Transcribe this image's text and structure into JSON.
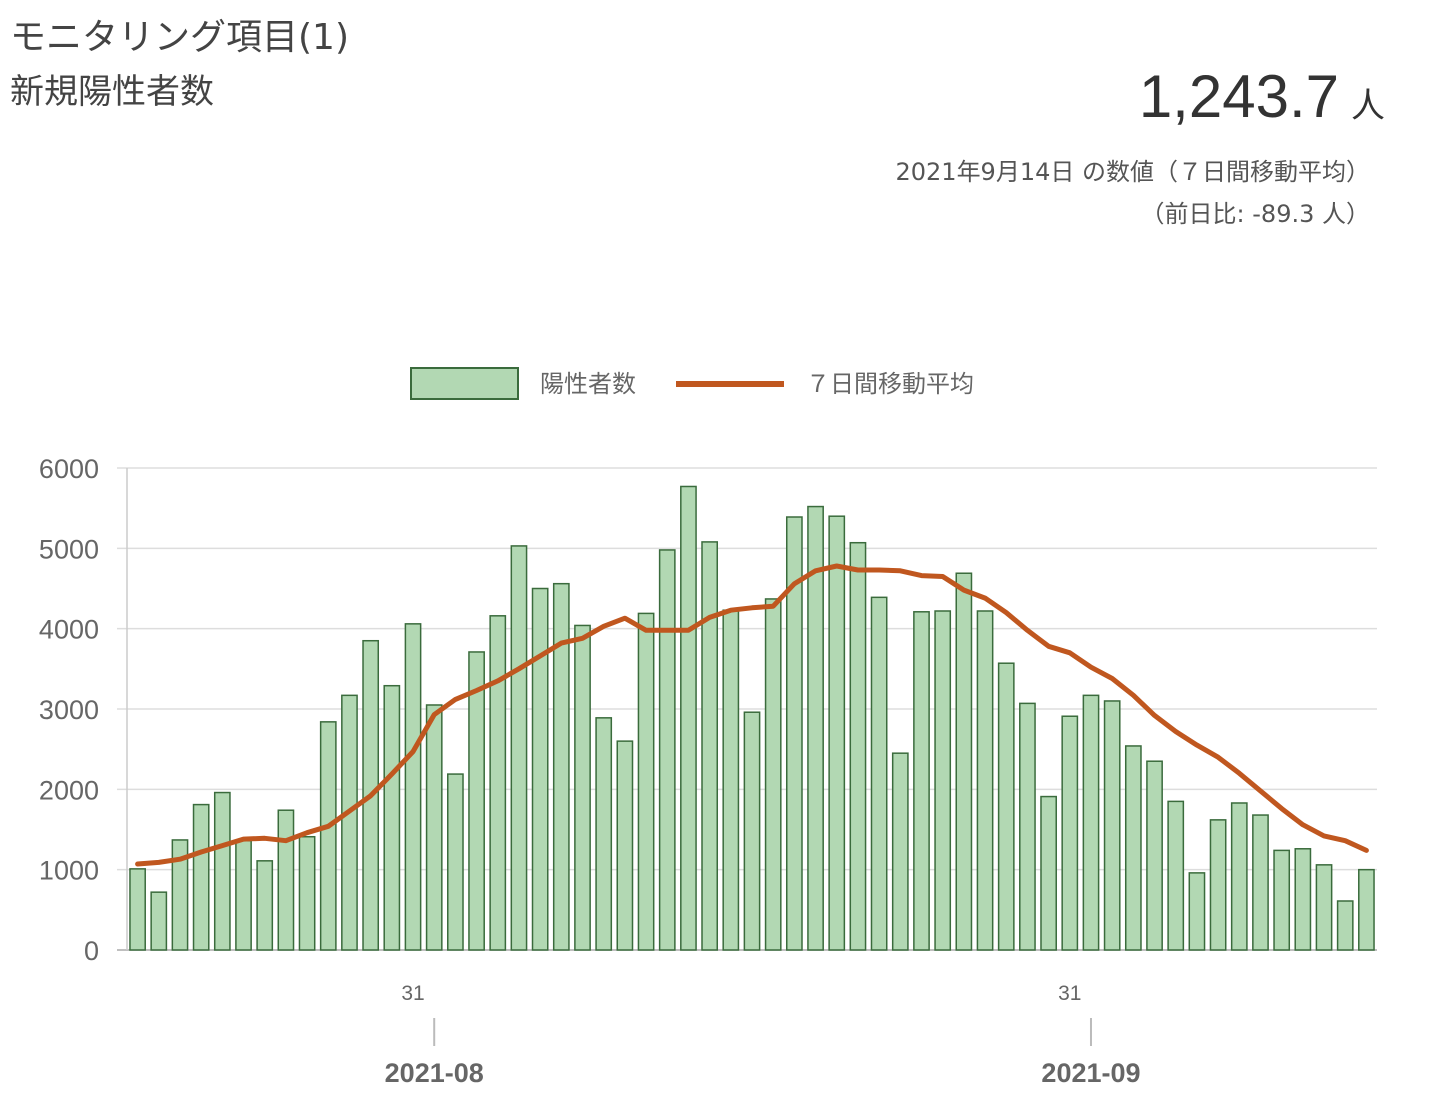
{
  "header": {
    "title": "モニタリング項目(1)",
    "subtitle": "新規陽性者数"
  },
  "summary": {
    "value": "1,243.7",
    "unit": "人",
    "caption": "2021年9月14日 の数値（７日間移動平均）",
    "diff": "（前日比: -89.3 人）"
  },
  "chart_data": {
    "type": "bar",
    "legend": {
      "bar_label": "陽性者数",
      "line_label": "７日間移動平均",
      "placement": "top"
    },
    "colors": {
      "bar_fill": "#b2d8b3",
      "bar_stroke": "#3a6b3c",
      "line": "#c0571f",
      "grid": "#dddddd",
      "axis_text": "#666666"
    },
    "ylim": [
      0,
      6000
    ],
    "y_ticks": [
      "0",
      "1000",
      "2000",
      "3000",
      "4000",
      "5000",
      "6000"
    ],
    "x_day_ticks": [
      {
        "index": 13,
        "label": "31"
      },
      {
        "index": 44,
        "label": "31"
      }
    ],
    "x_month_ticks": [
      {
        "index": 14.5,
        "label": "2021-08"
      },
      {
        "index": 45.5,
        "label": "2021-09"
      }
    ],
    "grid": true,
    "series": [
      {
        "name": "陽性者数",
        "type": "bar",
        "values": [
          1010,
          720,
          1370,
          1810,
          1960,
          1360,
          1110,
          1740,
          1410,
          2840,
          3170,
          3850,
          3290,
          4060,
          3050,
          2190,
          3710,
          4160,
          5030,
          4500,
          4560,
          4040,
          2890,
          2600,
          4190,
          4980,
          5770,
          5080,
          4230,
          2960,
          4370,
          5390,
          5520,
          5400,
          5070,
          4390,
          2450,
          4210,
          4220,
          4690,
          4220,
          3570,
          3070,
          1910,
          2910,
          3170,
          3100,
          2540,
          2350,
          1850,
          960,
          1620,
          1830,
          1680,
          1240,
          1260,
          1060,
          610,
          1000
        ]
      },
      {
        "name": "７日間移動平均",
        "type": "line",
        "values": [
          1070,
          1090,
          1130,
          1220,
          1300,
          1380,
          1390,
          1360,
          1460,
          1540,
          1730,
          1920,
          2190,
          2470,
          2930,
          3120,
          3230,
          3350,
          3500,
          3660,
          3820,
          3880,
          4030,
          4130,
          3980,
          3980,
          3980,
          4140,
          4230,
          4260,
          4280,
          4560,
          4720,
          4780,
          4730,
          4730,
          4720,
          4660,
          4650,
          4480,
          4380,
          4200,
          3980,
          3780,
          3700,
          3520,
          3380,
          3170,
          2920,
          2720,
          2550,
          2400,
          2200,
          1980,
          1760,
          1560,
          1420,
          1360,
          1240
        ]
      }
    ]
  }
}
